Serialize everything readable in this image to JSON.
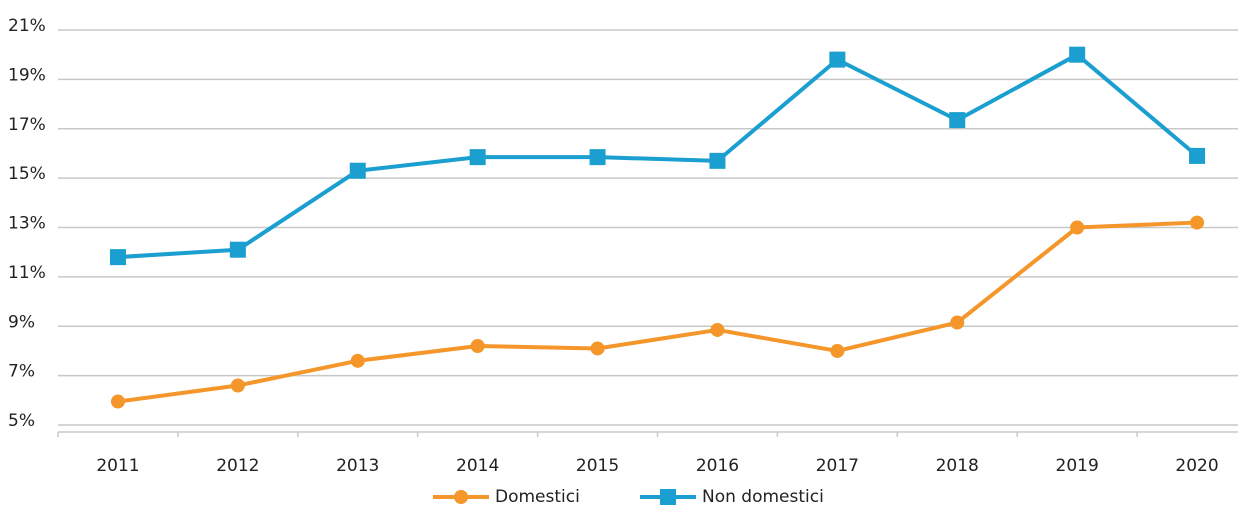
{
  "chart_data": {
    "type": "line",
    "categories": [
      "2011",
      "2012",
      "2013",
      "2014",
      "2015",
      "2016",
      "2017",
      "2018",
      "2019",
      "2020"
    ],
    "series": [
      {
        "name": "Domestici",
        "color": "#f4962a",
        "marker": "circle",
        "values": [
          5.95,
          6.6,
          7.6,
          8.2,
          8.1,
          8.85,
          8.0,
          9.15,
          13.0,
          13.2
        ]
      },
      {
        "name": "Non domestici",
        "color": "#1a9fd0",
        "marker": "square",
        "values": [
          11.8,
          12.1,
          15.3,
          15.85,
          15.85,
          15.7,
          19.8,
          17.35,
          20.0,
          15.9
        ]
      }
    ],
    "ylim": [
      5,
      21
    ],
    "yticks": [
      {
        "value": 5,
        "label": "5%"
      },
      {
        "value": 7,
        "label": "7%"
      },
      {
        "value": 9,
        "label": "9%"
      },
      {
        "value": 11,
        "label": "11%"
      },
      {
        "value": 13,
        "label": "13%"
      },
      {
        "value": 15,
        "label": "15%"
      },
      {
        "value": 17,
        "label": "17%"
      },
      {
        "value": 19,
        "label": "19%"
      },
      {
        "value": 21,
        "label": "21%"
      }
    ],
    "grid": true,
    "legend": "bottom"
  }
}
